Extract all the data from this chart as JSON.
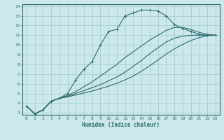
{
  "xlabel": "Humidex (Indice chaleur)",
  "ylabel": "",
  "bg_color": "#cce8ec",
  "grid_color": "#a8cdd4",
  "line_color": "#2a6b6b",
  "xlim": [
    -0.5,
    23.5
  ],
  "ylim": [
    2.8,
    14.2
  ],
  "xticks": [
    0,
    1,
    2,
    3,
    4,
    5,
    6,
    7,
    8,
    9,
    10,
    11,
    12,
    13,
    14,
    15,
    16,
    17,
    18,
    19,
    20,
    21,
    22,
    23
  ],
  "yticks": [
    3,
    4,
    5,
    6,
    7,
    8,
    9,
    10,
    11,
    12,
    13,
    14
  ],
  "lines": [
    {
      "x": [
        0,
        1,
        2,
        3,
        4,
        5,
        6,
        7,
        8,
        9,
        10,
        11,
        12,
        13,
        14,
        15,
        16,
        17,
        18,
        19,
        20,
        21,
        22,
        23
      ],
      "y": [
        3.7,
        2.9,
        3.3,
        4.2,
        4.5,
        5.0,
        6.4,
        7.5,
        8.3,
        10.0,
        11.4,
        11.6,
        13.0,
        13.3,
        13.6,
        13.6,
        13.5,
        13.0,
        12.1,
        11.7,
        11.4,
        11.1,
        11.0,
        11.0
      ],
      "marker": true
    },
    {
      "x": [
        0,
        1,
        2,
        3,
        4,
        5,
        6,
        7,
        8,
        9,
        10,
        11,
        12,
        13,
        14,
        15,
        16,
        17,
        18,
        19,
        20,
        21,
        22,
        23
      ],
      "y": [
        3.7,
        2.9,
        3.3,
        4.2,
        4.5,
        4.7,
        5.0,
        5.3,
        5.6,
        5.9,
        6.3,
        6.7,
        7.2,
        7.8,
        8.4,
        9.1,
        9.7,
        10.3,
        10.7,
        10.9,
        11.0,
        11.0,
        11.0,
        11.0
      ],
      "marker": false
    },
    {
      "x": [
        0,
        1,
        2,
        3,
        4,
        5,
        6,
        7,
        8,
        9,
        10,
        11,
        12,
        13,
        14,
        15,
        16,
        17,
        18,
        19,
        20,
        21,
        22,
        23
      ],
      "y": [
        3.7,
        2.9,
        3.3,
        4.2,
        4.5,
        4.65,
        4.85,
        5.05,
        5.25,
        5.5,
        5.75,
        6.05,
        6.4,
        6.8,
        7.3,
        7.85,
        8.45,
        9.05,
        9.6,
        10.05,
        10.45,
        10.75,
        10.95,
        11.0
      ],
      "marker": false
    },
    {
      "x": [
        0,
        1,
        2,
        3,
        4,
        5,
        6,
        7,
        8,
        9,
        10,
        11,
        12,
        13,
        14,
        15,
        16,
        17,
        18,
        19,
        20,
        21,
        22,
        23
      ],
      "y": [
        3.7,
        2.9,
        3.3,
        4.2,
        4.5,
        4.8,
        5.2,
        5.7,
        6.2,
        6.8,
        7.4,
        8.0,
        8.7,
        9.3,
        9.9,
        10.5,
        11.0,
        11.5,
        11.8,
        11.8,
        11.6,
        11.3,
        11.1,
        11.0
      ],
      "marker": false
    }
  ]
}
